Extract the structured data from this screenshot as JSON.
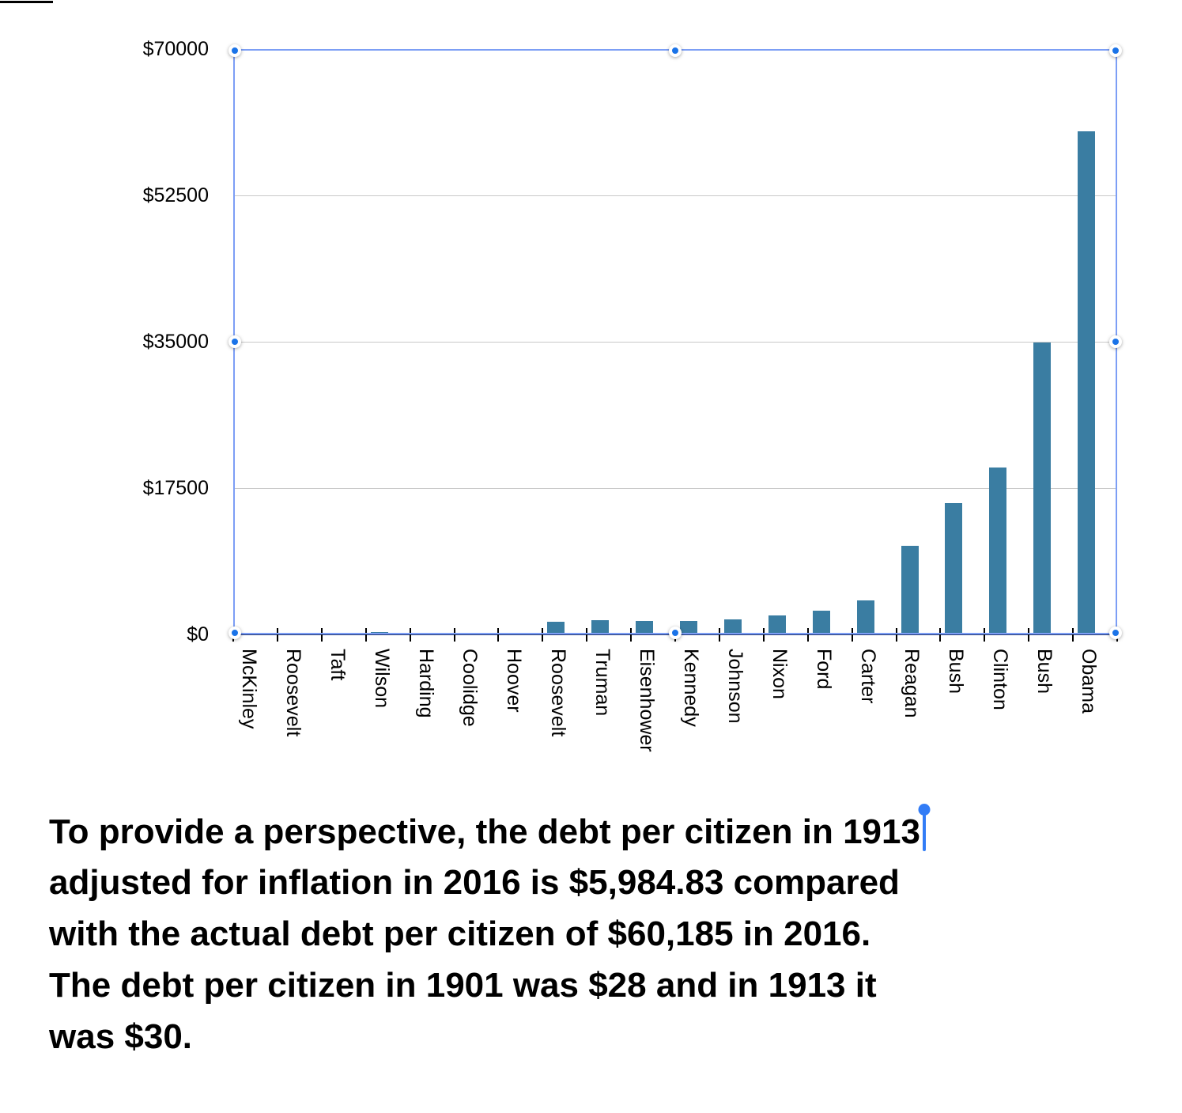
{
  "chart_data": {
    "type": "bar",
    "title": "",
    "xlabel": "",
    "ylabel": "",
    "categories": [
      "McKinley",
      "Roosevelt",
      "Taft",
      "Wilson",
      "Harding",
      "Coolidge",
      "Hoover",
      "Roosevelt",
      "Truman",
      "Eisenhower",
      "Kennedy",
      "Johnson",
      "Nixon",
      "Ford",
      "Carter",
      "Reagan",
      "Bush",
      "Clinton",
      "Bush",
      "Obama"
    ],
    "values": [
      28,
      30,
      30,
      255,
      225,
      140,
      180,
      1500,
      1700,
      1620,
      1600,
      1820,
      2290,
      2800,
      4060,
      10550,
      15670,
      20000,
      34940,
      60185
    ],
    "y_ticks": [
      "$0",
      "$17500",
      "$35000",
      "$52500",
      "$70000"
    ],
    "ylim": [
      0,
      70000
    ],
    "grid": "horizontal",
    "legend": "none",
    "bar_color": "#3A7DA2",
    "axis_color": "#1E3272",
    "tick_color": "#000000",
    "gridline_color": "#C8C8C8"
  },
  "selection": {
    "border_color": "#7C9EF5",
    "handle_color": "#1A73E8",
    "handles": [
      "top-left",
      "top-center",
      "top-right",
      "middle-left",
      "middle-right",
      "bottom-left",
      "bottom-center",
      "bottom-right"
    ]
  },
  "caption": {
    "lines": [
      "To provide a perspective, the debt per citizen in 1913",
      "adjusted for inflation in 2016 is $5,984.83 compared",
      "with the actual debt per citizen of $60,185 in 2016.",
      "The debt per citizen in 1901 was $28 and in 1913 it",
      "was $30."
    ],
    "caret_after_line": 0,
    "caret_color": "#327CF6"
  }
}
